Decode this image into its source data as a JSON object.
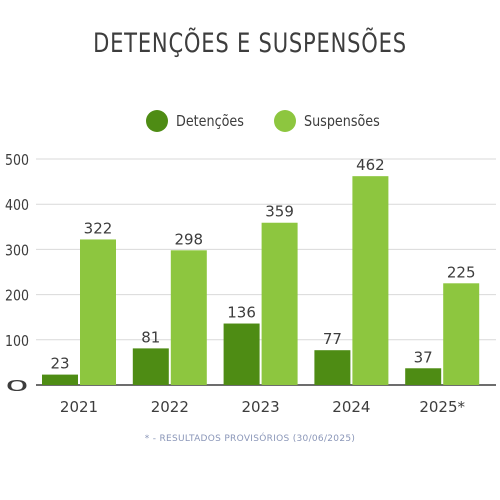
{
  "colors": {
    "detencoes": "#4e8c14",
    "suspensoes": "#8dc63f",
    "grid": "#d9d9d9",
    "axis": "#3d3d3d",
    "text": "#3d3d3d",
    "footnote": "#8a96b8"
  },
  "footnote": "* - RESULTADOS PROVISÓRIOS (30/06/2025)",
  "chart_data": {
    "type": "bar",
    "title": "DETENÇÕES E SUSPENSÕES",
    "categories": [
      "2021",
      "2022",
      "2023",
      "2024",
      "2025*"
    ],
    "series": [
      {
        "name": "Detenções",
        "values": [
          23,
          81,
          136,
          77,
          37
        ]
      },
      {
        "name": "Suspensões",
        "values": [
          322,
          298,
          359,
          462,
          225
        ]
      }
    ],
    "xlabel": "",
    "ylabel": "",
    "ylim": [
      0,
      500
    ],
    "yticks": [
      0,
      100,
      200,
      300,
      400,
      500
    ],
    "grid": true,
    "legend": "top-center",
    "data_labels": true
  }
}
